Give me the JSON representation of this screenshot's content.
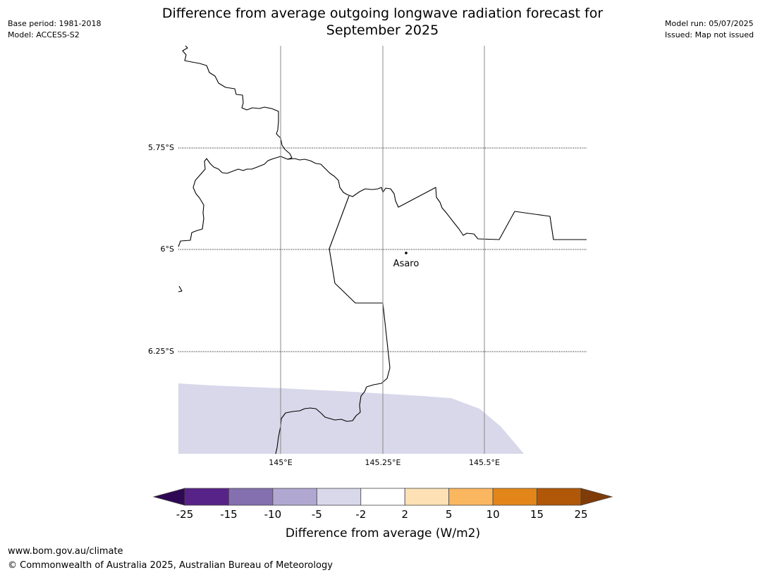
{
  "header": {
    "title_line1": "Difference from average outgoing longwave radiation forecast for",
    "title_line2": "September 2025",
    "base_period": "Base period: 1981-2018",
    "model": "Model: ACCESS-S2",
    "model_run": "Model run: 05/07/2025",
    "issued": "Issued: Map not issued"
  },
  "map": {
    "latitude_labels": [
      "5.75°S",
      "6°S",
      "6.25°S"
    ],
    "longitude_labels": [
      "145°E",
      "145.25°E",
      "145.5°E"
    ],
    "place": {
      "name": "Asaro",
      "lon": 145.28,
      "lat": -6.01
    },
    "shaded_region_category": "-5 to -2",
    "shaded_color": "#d8d8ea"
  },
  "colorbar": {
    "ticks": [
      "-25",
      "-15",
      "-10",
      "-5",
      "-2",
      "2",
      "5",
      "10",
      "15",
      "25"
    ],
    "colors": [
      "#582388",
      "#8470ae",
      "#b1a8d2",
      "#d8d8ea",
      "#ffffff",
      "#fde0b4",
      "#fbb760",
      "#e2861a",
      "#b05708"
    ],
    "low_extend_color": "#2e0854",
    "high_extend_color": "#7f3b08",
    "label": "Difference from average (W/m2)"
  },
  "footer": {
    "url": "www.bom.gov.au/climate",
    "copyright": "© Commonwealth of Australia 2025, Australian Bureau of Meteorology"
  }
}
